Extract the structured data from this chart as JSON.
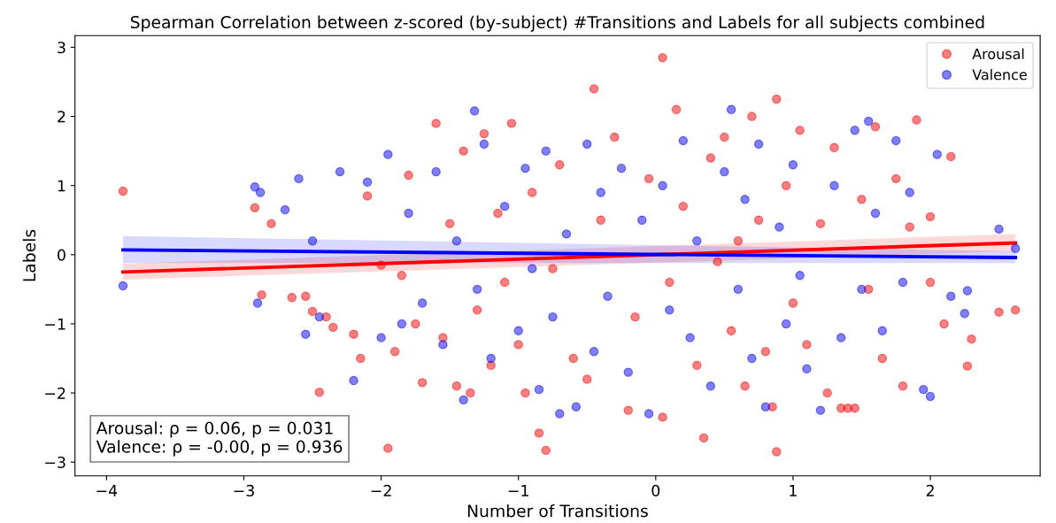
{
  "chart_data": {
    "type": "scatter",
    "title": "Spearman Correlation between z-scored (by-subject) #Transitions and Labels for all subjects combined",
    "xlabel": "Number of Transitions",
    "ylabel": "Labels",
    "xlim": [
      -4.23,
      2.8
    ],
    "ylim": [
      -3.2,
      3.17
    ],
    "xticks": [
      {
        "value": -4,
        "label": "−4"
      },
      {
        "value": -3,
        "label": "−3"
      },
      {
        "value": -2,
        "label": "−2"
      },
      {
        "value": -1,
        "label": "−1"
      },
      0,
      1,
      2
    ],
    "yticks": [
      {
        "value": -3,
        "label": "−3"
      },
      {
        "value": -2,
        "label": "−2"
      },
      {
        "value": -1,
        "label": "−1"
      },
      0,
      1,
      2,
      3
    ],
    "grid": false,
    "legend": "top right",
    "marker": "circle",
    "annotations": [
      "Arousal: ρ = 0.06, p = 0.031\nValence: ρ = -0.00, p = 0.936"
    ],
    "series": [
      {
        "name": "Arousal",
        "color": "#ff0000",
        "x": [
          -3.88,
          -2.92,
          -2.8,
          -2.87,
          -2.65,
          -2.5,
          -2.55,
          -2.45,
          -2.4,
          -2.35,
          -2.2,
          -2.15,
          -2.1,
          -2.0,
          -1.95,
          -1.9,
          -1.85,
          -1.8,
          -1.75,
          -1.7,
          -1.6,
          -1.55,
          -1.5,
          -1.45,
          -1.4,
          -1.35,
          -1.3,
          -1.25,
          -1.2,
          -1.15,
          -1.1,
          -1.05,
          -1.0,
          -0.95,
          -0.9,
          -0.85,
          -0.8,
          -0.75,
          -0.7,
          -0.6,
          -0.5,
          -0.45,
          -0.4,
          -0.3,
          -0.2,
          -0.15,
          -0.05,
          0.05,
          0.05,
          0.1,
          0.15,
          0.2,
          0.3,
          0.35,
          0.4,
          0.45,
          0.5,
          0.55,
          0.6,
          0.65,
          0.7,
          0.75,
          0.8,
          0.85,
          0.88,
          0.88,
          0.95,
          1.0,
          1.05,
          1.1,
          1.2,
          1.25,
          1.3,
          1.35,
          1.4,
          1.45,
          1.5,
          1.55,
          1.6,
          1.65,
          1.75,
          1.8,
          1.85,
          1.9,
          2.0,
          2.0,
          2.1,
          2.15,
          2.27,
          2.3,
          2.5,
          2.62
        ],
        "values": [
          0.92,
          0.68,
          0.45,
          -0.58,
          -0.62,
          -0.82,
          -0.6,
          -1.99,
          -0.9,
          -1.05,
          -1.15,
          -1.5,
          0.85,
          -0.15,
          -2.8,
          -1.4,
          -0.3,
          1.15,
          -1.0,
          -1.85,
          1.9,
          -1.2,
          0.45,
          -1.9,
          1.5,
          -2.0,
          -0.8,
          1.75,
          -1.6,
          0.6,
          -0.4,
          1.9,
          -1.3,
          -2.0,
          0.9,
          -2.58,
          -2.83,
          -0.2,
          1.3,
          -1.5,
          -1.8,
          2.4,
          0.5,
          1.7,
          -2.25,
          -0.9,
          1.1,
          2.85,
          -2.35,
          -0.4,
          2.1,
          0.7,
          -1.6,
          -2.65,
          1.4,
          -0.1,
          1.7,
          -1.1,
          0.2,
          -1.9,
          2.0,
          0.5,
          -1.4,
          -2.2,
          2.25,
          -2.85,
          1.0,
          -0.7,
          1.8,
          -1.3,
          0.45,
          -2.0,
          1.55,
          -2.22,
          -2.22,
          -2.22,
          0.8,
          -0.5,
          1.85,
          -1.5,
          1.1,
          -1.9,
          0.4,
          1.95,
          -0.4,
          0.55,
          -1.0,
          1.42,
          -1.61,
          -1.22,
          -0.83,
          -0.8
        ]
      },
      {
        "name": "Valence",
        "color": "#0000ff",
        "x": [
          -3.88,
          -2.92,
          -2.88,
          -2.9,
          -2.7,
          -2.6,
          -2.55,
          -2.5,
          -2.45,
          -2.3,
          -2.2,
          -2.1,
          -2.0,
          -1.95,
          -1.85,
          -1.8,
          -1.7,
          -1.6,
          -1.55,
          -1.45,
          -1.4,
          -1.32,
          -1.3,
          -1.25,
          -1.2,
          -1.1,
          -1.0,
          -0.95,
          -0.9,
          -0.85,
          -0.8,
          -0.75,
          -0.7,
          -0.65,
          -0.58,
          -0.5,
          -0.45,
          -0.4,
          -0.35,
          -0.25,
          -0.2,
          -0.1,
          -0.05,
          0.05,
          0.1,
          0.2,
          0.25,
          0.3,
          0.4,
          0.5,
          0.55,
          0.6,
          0.65,
          0.7,
          0.75,
          0.8,
          0.9,
          0.95,
          1.0,
          1.05,
          1.1,
          1.2,
          1.3,
          1.35,
          1.45,
          1.5,
          1.55,
          1.6,
          1.65,
          1.75,
          1.8,
          1.85,
          1.95,
          2.0,
          2.05,
          2.15,
          2.25,
          2.27,
          2.5,
          2.62
        ],
        "values": [
          -0.45,
          0.98,
          0.9,
          -0.7,
          0.65,
          1.1,
          -1.15,
          0.2,
          -0.9,
          1.2,
          -1.82,
          1.05,
          -1.2,
          1.45,
          -1.0,
          0.6,
          -0.7,
          1.2,
          -1.3,
          0.2,
          -2.1,
          2.08,
          -0.5,
          1.6,
          -1.5,
          0.7,
          -1.1,
          1.25,
          -0.2,
          -1.95,
          1.5,
          -0.9,
          -2.3,
          0.3,
          -2.2,
          1.6,
          -1.4,
          0.9,
          -0.6,
          1.25,
          -1.7,
          0.5,
          -2.3,
          1.0,
          -0.8,
          1.65,
          -1.2,
          0.2,
          -1.9,
          1.2,
          2.1,
          -0.5,
          0.8,
          -1.5,
          1.6,
          -2.2,
          0.4,
          -1.0,
          1.3,
          -0.3,
          -1.65,
          -2.25,
          1.0,
          -1.2,
          1.8,
          -0.5,
          1.93,
          0.6,
          -1.1,
          1.65,
          -0.4,
          0.9,
          -1.95,
          -2.05,
          1.45,
          -0.6,
          -0.85,
          -0.52,
          0.37,
          0.09
        ]
      },
      {
        "type": "line",
        "marker": "none",
        "color": "#ff0000",
        "x": [
          -3.88,
          2.62
        ],
        "values": [
          -0.25,
          0.17
        ],
        "lower": [
          -0.36,
          0.05
        ],
        "upper": [
          -0.13,
          0.3
        ]
      },
      {
        "type": "line",
        "marker": "none",
        "color": "#0000ff",
        "x": [
          -3.88,
          2.62
        ],
        "values": [
          0.07,
          -0.04
        ],
        "lower": [
          -0.12,
          -0.12
        ],
        "upper": [
          0.27,
          0.05
        ]
      }
    ]
  }
}
